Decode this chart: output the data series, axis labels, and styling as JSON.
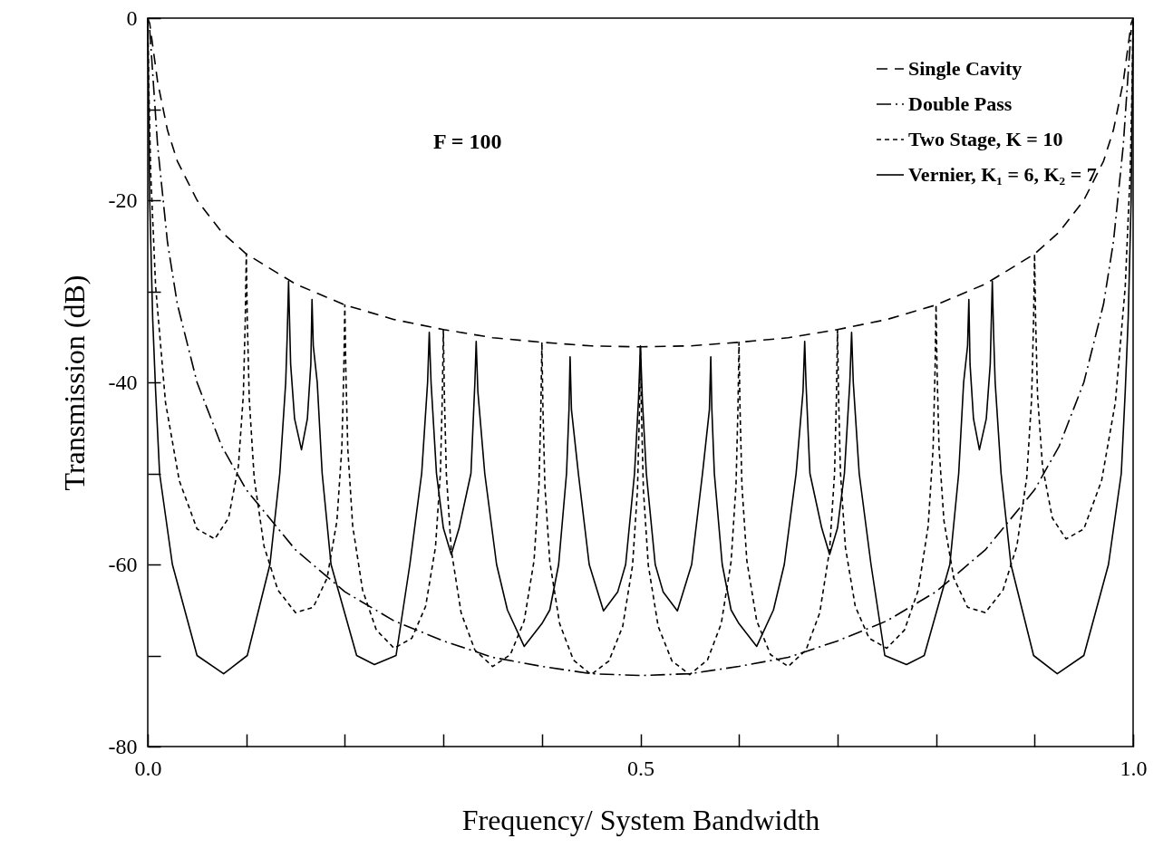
{
  "chart_data": {
    "type": "line",
    "xlabel": "Frequency/ System Bandwidth",
    "ylabel": "Transmission (dB)",
    "annotations": [
      "F = 100"
    ],
    "xlim": [
      0,
      1
    ],
    "ylim": [
      -80,
      0
    ],
    "xticks": [
      {
        "value": 0,
        "label": "0.0"
      },
      {
        "value": 0.1,
        "label": null
      },
      {
        "value": 0.2,
        "label": null
      },
      {
        "value": 0.3,
        "label": null
      },
      {
        "value": 0.4,
        "label": null
      },
      {
        "value": 0.5,
        "label": "0.5"
      },
      {
        "value": 0.6,
        "label": null
      },
      {
        "value": 0.7,
        "label": null
      },
      {
        "value": 0.8,
        "label": null
      },
      {
        "value": 0.9,
        "label": null
      },
      {
        "value": 1,
        "label": "1.0"
      }
    ],
    "yticks": [
      -80,
      {
        "value": -70,
        "label": null
      },
      -60,
      {
        "value": -50,
        "label": null
      },
      -40,
      {
        "value": -30,
        "label": null
      },
      -20,
      {
        "value": -10,
        "label": null
      },
      0
    ],
    "grid": false,
    "legend": "top right",
    "marker": "none",
    "series": [
      {
        "name": "Single Cavity",
        "color": "#000000",
        "line_style": "dashed",
        "x": [
          0,
          0.002,
          0.005,
          0.01,
          0.02,
          0.03,
          0.05,
          0.075,
          0.1,
          0.15,
          0.2,
          0.25,
          0.3,
          0.35,
          0.4,
          0.45,
          0.5,
          0.55,
          0.6,
          0.65,
          0.7,
          0.75,
          0.8,
          0.85,
          0.9,
          0.925,
          0.95,
          0.97,
          0.98,
          0.99,
          0.995,
          0.998,
          1
        ],
        "values": [
          0,
          -0.6,
          -3,
          -7,
          -12.3,
          -15.7,
          -20,
          -23.5,
          -25.9,
          -29.2,
          -31.5,
          -33.1,
          -34.2,
          -35.1,
          -35.6,
          -36,
          -36.1,
          -36,
          -35.6,
          -35.1,
          -34.2,
          -33.1,
          -31.5,
          -29.2,
          -25.9,
          -23.5,
          -20,
          -15.7,
          -12.3,
          -7,
          -3,
          -0.6,
          0
        ]
      },
      {
        "name": "Double Pass",
        "color": "#000000",
        "line_style": "dashdot",
        "x": [
          0.002,
          0.005,
          0.01,
          0.02,
          0.03,
          0.05,
          0.075,
          0.1,
          0.15,
          0.2,
          0.25,
          0.3,
          0.35,
          0.4,
          0.45,
          0.5,
          0.55,
          0.6,
          0.65,
          0.7,
          0.75,
          0.8,
          0.85,
          0.9,
          0.925,
          0.95,
          0.97,
          0.98,
          0.99,
          0.995,
          0.998
        ],
        "values": [
          -1.3,
          -6,
          -14,
          -24.6,
          -31.4,
          -40,
          -47,
          -51.8,
          -58.4,
          -63,
          -66.2,
          -68.4,
          -70.2,
          -71.2,
          -72,
          -72.2,
          -72,
          -71.2,
          -70.2,
          -68.4,
          -66.2,
          -63,
          -58.4,
          -51.8,
          -47,
          -40,
          -31.4,
          -24.6,
          -14,
          -6,
          -1.3
        ]
      },
      {
        "name": "Two Stage, K = 10",
        "color": "#000000",
        "line_style": "dotted",
        "x": [
          0,
          0.001,
          0.003,
          0.008,
          0.018,
          0.032,
          0.05,
          0.068,
          0.082,
          0.092,
          0.097,
          0.099,
          0.1,
          0.101,
          0.103,
          0.108,
          0.118,
          0.132,
          0.15,
          0.168,
          0.182,
          0.192,
          0.197,
          0.199,
          0.2,
          0.201,
          0.203,
          0.208,
          0.218,
          0.232,
          0.25,
          0.268,
          0.282,
          0.292,
          0.297,
          0.299,
          0.3,
          0.301,
          0.303,
          0.308,
          0.318,
          0.332,
          0.35,
          0.368,
          0.382,
          0.392,
          0.397,
          0.399,
          0.4,
          0.401,
          0.403,
          0.408,
          0.418,
          0.432,
          0.45,
          0.468,
          0.482,
          0.492,
          0.497,
          0.499,
          0.5,
          0.501,
          0.503,
          0.508,
          0.518,
          0.532,
          0.55,
          0.568,
          0.582,
          0.592,
          0.597,
          0.599,
          0.6,
          0.601,
          0.603,
          0.608,
          0.618,
          0.632,
          0.65,
          0.668,
          0.682,
          0.692,
          0.697,
          0.699,
          0.7,
          0.701,
          0.703,
          0.708,
          0.718,
          0.732,
          0.75,
          0.768,
          0.782,
          0.792,
          0.797,
          0.799,
          0.8,
          0.801,
          0.803,
          0.808,
          0.818,
          0.832,
          0.85,
          0.868,
          0.882,
          0.892,
          0.897,
          0.899,
          0.9,
          0.901,
          0.903,
          0.908,
          0.918,
          0.932,
          0.95,
          0.968,
          0.982,
          0.992,
          0.997,
          0.999,
          1
        ],
        "values": [
          0,
          -7.2,
          -17,
          -29.5,
          -42.2,
          -50.8,
          -56.1,
          -57.2,
          -54.9,
          -49.2,
          -41.4,
          -32.9,
          -25.9,
          -33,
          -41.8,
          -50.5,
          -58,
          -62.8,
          -65.3,
          -64.7,
          -61.5,
          -55.2,
          -47.1,
          -38.5,
          -31.5,
          -38.6,
          -47.3,
          -55.8,
          -62.8,
          -67.2,
          -69.2,
          -68.1,
          -64.6,
          -58.1,
          -49.9,
          -41.2,
          -34.2,
          -41.2,
          -50,
          -58.4,
          -65.3,
          -69.4,
          -71.2,
          -69.9,
          -66.2,
          -59.6,
          -51.3,
          -42.6,
          -35.6,
          -42.6,
          -51.3,
          -59.7,
          -66.5,
          -70.5,
          -72.1,
          -70.6,
          -66.8,
          -60.1,
          -51.8,
          -43.1,
          -36.1,
          -43.1,
          -51.8,
          -60.1,
          -66.8,
          -70.6,
          -72.1,
          -70.5,
          -66.5,
          -59.7,
          -51.3,
          -42.6,
          -35.6,
          -42.6,
          -51.3,
          -59.6,
          -66.2,
          -69.9,
          -71.2,
          -69.4,
          -65.3,
          -58.4,
          -50,
          -41.2,
          -34.2,
          -41.2,
          -49.9,
          -58.1,
          -64.6,
          -68.1,
          -69.2,
          -67.2,
          -62.8,
          -55.8,
          -47.3,
          -38.6,
          -31.5,
          -38.5,
          -47.1,
          -55.2,
          -61.5,
          -64.7,
          -65.3,
          -62.8,
          -58,
          -50.5,
          -41.8,
          -33,
          -25.9,
          -32.9,
          -41.4,
          -49.2,
          -54.9,
          -57.2,
          -56.1,
          -50.8,
          -42.2,
          -29.5,
          -17,
          -7.2,
          0
        ]
      },
      {
        "name": "Vernier, K₁ = 6, K₂ = 7",
        "color": "#000000",
        "line_style": "solid",
        "x": [
          0,
          0.002,
          0.005,
          0.008,
          0.012,
          0.025,
          0.05,
          0.077,
          0.101,
          0.124,
          0.134,
          0.14,
          0.1415,
          0.1429,
          0.145,
          0.149,
          0.156,
          0.162,
          0.1655,
          0.1667,
          0.168,
          0.172,
          0.177,
          0.186,
          0.212,
          0.23,
          0.252,
          0.266,
          0.278,
          0.284,
          0.2857,
          0.2875,
          0.293,
          0.3,
          0.308,
          0.316,
          0.328,
          0.332,
          0.3333,
          0.335,
          0.342,
          0.354,
          0.365,
          0.382,
          0.4,
          0.408,
          0.417,
          0.425,
          0.4275,
          0.4286,
          0.43,
          0.437,
          0.448,
          0.4625,
          0.477,
          0.485,
          0.494,
          0.498,
          0.5,
          0.502,
          0.506,
          0.515,
          0.523,
          0.5375,
          0.552,
          0.563,
          0.57,
          0.5714,
          0.5725,
          0.575,
          0.583,
          0.592,
          0.6,
          0.618,
          0.635,
          0.646,
          0.658,
          0.665,
          0.6667,
          0.668,
          0.672,
          0.684,
          0.692,
          0.7,
          0.707,
          0.7125,
          0.7143,
          0.716,
          0.722,
          0.734,
          0.748,
          0.77,
          0.788,
          0.814,
          0.823,
          0.828,
          0.832,
          0.8333,
          0.8345,
          0.838,
          0.844,
          0.851,
          0.855,
          0.8571,
          0.8585,
          0.86,
          0.866,
          0.876,
          0.899,
          0.923,
          0.95,
          0.975,
          0.988,
          0.992,
          0.995,
          0.998,
          1
        ],
        "values": [
          0,
          -20,
          -33,
          -41,
          -50,
          -60,
          -70,
          -72,
          -70,
          -60,
          -50,
          -40,
          -35,
          -28.9,
          -38,
          -44,
          -47.4,
          -44,
          -38,
          -30.9,
          -36,
          -40,
          -50,
          -60,
          -70,
          -71,
          -70,
          -60,
          -50,
          -40,
          -34.5,
          -40,
          -50,
          -56,
          -58.9,
          -56,
          -50,
          -40,
          -35.5,
          -41,
          -50,
          -60,
          -65,
          -69,
          -66.5,
          -65,
          -60,
          -50,
          -43,
          -37.2,
          -43,
          -50,
          -60,
          -65.1,
          -63,
          -60,
          -50,
          -42,
          -36,
          -42,
          -50,
          -60,
          -63,
          -65.1,
          -60,
          -50,
          -43,
          -37.2,
          -43,
          -50,
          -60,
          -65,
          -66.5,
          -69,
          -65,
          -60,
          -50,
          -41,
          -35.5,
          -40,
          -50,
          -56,
          -58.9,
          -56,
          -50,
          -40,
          -34.5,
          -40,
          -50,
          -60,
          -70,
          -71,
          -70,
          -60,
          -50,
          -40,
          -36,
          -30.9,
          -38,
          -44,
          -47.4,
          -44,
          -38,
          -28.9,
          -35,
          -40,
          -50,
          -60,
          -70,
          -72,
          -70,
          -60,
          -50,
          -41,
          -33,
          -20,
          0
        ]
      }
    ]
  }
}
